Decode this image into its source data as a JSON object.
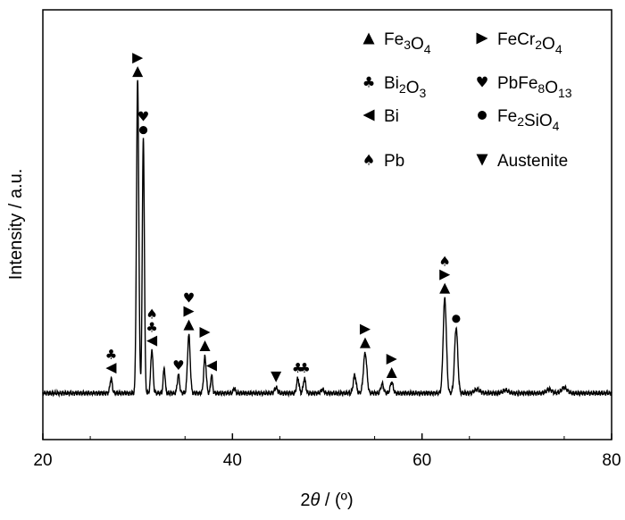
{
  "chart_data": {
    "type": "line",
    "title": "",
    "xlabel": "2θ / (º)",
    "xlabel_parts": {
      "pre": "2",
      "theta": "θ",
      "post": " / (º)"
    },
    "ylabel": "Intensity / a.u.",
    "xlim": [
      20,
      80
    ],
    "ylim": [
      0,
      100
    ],
    "xticks": [
      20,
      40,
      60,
      80
    ],
    "yticks_shown": false,
    "grid": false,
    "legend_placement": "top-right",
    "background": 14,
    "legend": [
      {
        "symbol": "triangle-up",
        "label": "Fe3O4",
        "parts": [
          [
            "Fe",
            ""
          ],
          [
            "3",
            "sub"
          ],
          [
            "O",
            ""
          ],
          [
            "4",
            "sub"
          ]
        ]
      },
      {
        "symbol": "triangle-right",
        "label": "FeCr2O4",
        "parts": [
          [
            "FeCr",
            ""
          ],
          [
            "2",
            "sub"
          ],
          [
            "O",
            ""
          ],
          [
            "4",
            "sub"
          ]
        ]
      },
      {
        "symbol": "club",
        "label": "Bi2O3",
        "parts": [
          [
            "Bi",
            ""
          ],
          [
            "2",
            "sub"
          ],
          [
            "O",
            ""
          ],
          [
            "3",
            "sub"
          ]
        ]
      },
      {
        "symbol": "heart",
        "label": "PbFe8O13",
        "parts": [
          [
            "PbFe",
            ""
          ],
          [
            "8",
            "sub"
          ],
          [
            "O",
            ""
          ],
          [
            "13",
            "sub"
          ]
        ]
      },
      {
        "symbol": "triangle-left",
        "label": "Bi",
        "parts": [
          [
            "Bi",
            ""
          ]
        ]
      },
      {
        "symbol": "circle",
        "label": "Fe2SiO4",
        "parts": [
          [
            "Fe",
            ""
          ],
          [
            "2",
            "sub"
          ],
          [
            "SiO",
            ""
          ],
          [
            "4",
            "sub"
          ]
        ]
      },
      {
        "symbol": "spade",
        "label": "Pb",
        "parts": [
          [
            "Pb",
            ""
          ]
        ]
      },
      {
        "symbol": "triangle-down",
        "label": "Austenite",
        "parts": [
          [
            "Austenite",
            ""
          ]
        ]
      }
    ],
    "peaks": [
      {
        "x": 27.2,
        "h": 4,
        "w": 0.12
      },
      {
        "x": 30.0,
        "h": 86,
        "w": 0.12
      },
      {
        "x": 30.6,
        "h": 70,
        "w": 0.11
      },
      {
        "x": 31.5,
        "h": 12,
        "w": 0.12
      },
      {
        "x": 32.8,
        "h": 7,
        "w": 0.1
      },
      {
        "x": 34.3,
        "h": 5,
        "w": 0.12
      },
      {
        "x": 35.4,
        "h": 16,
        "w": 0.14
      },
      {
        "x": 37.1,
        "h": 10,
        "w": 0.13
      },
      {
        "x": 37.8,
        "h": 5,
        "w": 0.1
      },
      {
        "x": 40.2,
        "h": 1.5,
        "w": 0.1
      },
      {
        "x": 44.6,
        "h": 1.5,
        "w": 0.15
      },
      {
        "x": 46.9,
        "h": 4,
        "w": 0.13
      },
      {
        "x": 47.6,
        "h": 4,
        "w": 0.13
      },
      {
        "x": 49.5,
        "h": 1,
        "w": 0.15
      },
      {
        "x": 52.9,
        "h": 5,
        "w": 0.15
      },
      {
        "x": 54.0,
        "h": 11,
        "w": 0.18
      },
      {
        "x": 55.8,
        "h": 2.5,
        "w": 0.15
      },
      {
        "x": 56.8,
        "h": 3,
        "w": 0.15
      },
      {
        "x": 62.4,
        "h": 26,
        "w": 0.17
      },
      {
        "x": 63.6,
        "h": 18,
        "w": 0.17
      },
      {
        "x": 65.8,
        "h": 1,
        "w": 0.3
      },
      {
        "x": 68.8,
        "h": 0.8,
        "w": 0.3
      },
      {
        "x": 73.4,
        "h": 1,
        "w": 0.3
      },
      {
        "x": 75.0,
        "h": 1.5,
        "w": 0.3
      }
    ],
    "annotations": [
      {
        "x": 27.2,
        "symbols": [
          "triangle-left",
          "club"
        ]
      },
      {
        "x": 30.0,
        "symbols": [
          "triangle-up",
          "triangle-right"
        ]
      },
      {
        "x": 30.6,
        "symbols": [
          "circle",
          "heart"
        ]
      },
      {
        "x": 31.5,
        "symbols": [
          "triangle-left",
          "club",
          "spade"
        ]
      },
      {
        "x": 34.3,
        "symbols": [
          "heart"
        ]
      },
      {
        "x": 35.4,
        "symbols": [
          "triangle-up",
          "triangle-right",
          "heart"
        ]
      },
      {
        "x": 37.1,
        "symbols": [
          "triangle-up",
          "triangle-right"
        ]
      },
      {
        "x": 37.8,
        "symbols": [
          "triangle-left"
        ]
      },
      {
        "x": 44.6,
        "symbols": [
          "triangle-down"
        ]
      },
      {
        "x": 46.9,
        "symbols": [
          "club"
        ]
      },
      {
        "x": 47.6,
        "symbols": [
          "club"
        ]
      },
      {
        "x": 54.0,
        "symbols": [
          "triangle-up",
          "triangle-right"
        ]
      },
      {
        "x": 56.8,
        "symbols": [
          "triangle-up",
          "triangle-right"
        ]
      },
      {
        "x": 62.4,
        "symbols": [
          "triangle-up",
          "triangle-right",
          "spade"
        ]
      },
      {
        "x": 63.6,
        "symbols": [
          "circle"
        ]
      }
    ]
  }
}
